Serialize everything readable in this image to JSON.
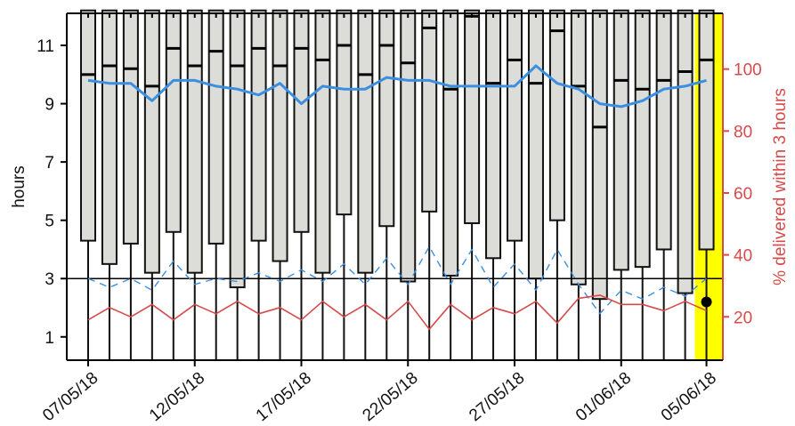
{
  "colors": {
    "box_fill": "#dcdcd8",
    "box_stroke": "#111111",
    "median": "#000000",
    "blue_line": "#3b8fe0",
    "red_line": "#d84a4a",
    "highlight": "#ffff00",
    "right_axis": "#d84a4a"
  },
  "chart_data": {
    "type": "boxplot",
    "ylabel": "hours",
    "y2label": "% delivered within 3 hours",
    "ylim": [
      0.2,
      12.1
    ],
    "y2lim": [
      6,
      118
    ],
    "yticks": [
      1,
      3,
      5,
      7,
      9,
      11
    ],
    "y2ticks": [
      20,
      40,
      60,
      80,
      100
    ],
    "x_tick_labels": [
      "07/05/18",
      "12/05/18",
      "17/05/18",
      "22/05/18",
      "27/05/18",
      "01/06/18",
      "05/06/18"
    ],
    "x_tick_indices": [
      0,
      5,
      10,
      15,
      20,
      25,
      29
    ],
    "reference_line_hours": 3,
    "highlighted_index": 29,
    "boxes": [
      {
        "q1": 4.3,
        "median": 10.0,
        "q3": 12.2,
        "whisker_low": 0.2
      },
      {
        "q1": 3.5,
        "median": 10.3,
        "q3": 12.2,
        "whisker_low": 0.2
      },
      {
        "q1": 4.2,
        "median": 10.2,
        "q3": 12.2,
        "whisker_low": 0.2
      },
      {
        "q1": 3.2,
        "median": 9.6,
        "q3": 12.2,
        "whisker_low": 0.2
      },
      {
        "q1": 4.6,
        "median": 10.9,
        "q3": 12.2,
        "whisker_low": 0.2
      },
      {
        "q1": 3.2,
        "median": 10.3,
        "q3": 12.2,
        "whisker_low": 0.2
      },
      {
        "q1": 4.2,
        "median": 10.8,
        "q3": 12.2,
        "whisker_low": 0.2
      },
      {
        "q1": 2.7,
        "median": 10.3,
        "q3": 12.2,
        "whisker_low": 0.2
      },
      {
        "q1": 4.3,
        "median": 10.9,
        "q3": 12.2,
        "whisker_low": 0.2
      },
      {
        "q1": 3.6,
        "median": 10.3,
        "q3": 12.2,
        "whisker_low": 0.2
      },
      {
        "q1": 4.6,
        "median": 10.9,
        "q3": 12.2,
        "whisker_low": 0.2
      },
      {
        "q1": 3.2,
        "median": 10.5,
        "q3": 12.2,
        "whisker_low": 0.2
      },
      {
        "q1": 5.2,
        "median": 11.0,
        "q3": 12.2,
        "whisker_low": 0.2
      },
      {
        "q1": 3.2,
        "median": 10.0,
        "q3": 12.2,
        "whisker_low": 0.2
      },
      {
        "q1": 4.8,
        "median": 11.0,
        "q3": 12.2,
        "whisker_low": 0.2
      },
      {
        "q1": 2.9,
        "median": 10.4,
        "q3": 12.2,
        "whisker_low": 0.2
      },
      {
        "q1": 5.3,
        "median": 11.6,
        "q3": 12.2,
        "whisker_low": 0.2
      },
      {
        "q1": 3.1,
        "median": 9.5,
        "q3": 12.2,
        "whisker_low": 0.2
      },
      {
        "q1": 4.9,
        "median": 12.0,
        "q3": 12.2,
        "whisker_low": 0.2
      },
      {
        "q1": 3.7,
        "median": 9.7,
        "q3": 12.2,
        "whisker_low": 0.2
      },
      {
        "q1": 4.3,
        "median": 10.5,
        "q3": 12.2,
        "whisker_low": 0.2
      },
      {
        "q1": 3.0,
        "median": 9.7,
        "q3": 12.2,
        "whisker_low": 0.2
      },
      {
        "q1": 5.0,
        "median": 11.5,
        "q3": 12.2,
        "whisker_low": 0.2
      },
      {
        "q1": 2.8,
        "median": 9.6,
        "q3": 12.2,
        "whisker_low": 0.2
      },
      {
        "q1": 2.3,
        "median": 8.2,
        "q3": 12.2,
        "whisker_low": 0.2
      },
      {
        "q1": 3.3,
        "median": 9.8,
        "q3": 12.2,
        "whisker_low": 0.2
      },
      {
        "q1": 3.4,
        "median": 9.5,
        "q3": 12.2,
        "whisker_low": 0.2
      },
      {
        "q1": 4.0,
        "median": 9.8,
        "q3": 12.2,
        "whisker_low": 0.2
      },
      {
        "q1": 2.5,
        "median": 10.1,
        "q3": 12.2,
        "whisker_low": 0.2
      },
      {
        "q1": 4.0,
        "median": 10.5,
        "q3": 12.2,
        "whisker_low": 0.2
      }
    ],
    "series": [
      {
        "axis": "left",
        "style": "solid",
        "values": [
          9.8,
          9.7,
          9.7,
          9.1,
          9.8,
          9.8,
          9.6,
          9.5,
          9.3,
          9.7,
          9.0,
          9.6,
          9.5,
          9.5,
          9.9,
          9.8,
          9.8,
          9.6,
          9.6,
          9.6,
          9.6,
          10.3,
          9.7,
          9.5,
          9.0,
          8.9,
          9.1,
          9.5,
          9.6,
          9.8
        ]
      },
      {
        "axis": "left",
        "style": "dashed",
        "values": [
          3.0,
          2.7,
          3.0,
          2.6,
          3.6,
          2.8,
          3.0,
          2.9,
          3.2,
          2.9,
          3.3,
          2.9,
          3.5,
          2.8,
          3.7,
          2.8,
          4.1,
          2.8,
          4.0,
          2.7,
          3.5,
          2.6,
          4.0,
          2.8,
          1.8,
          2.6,
          2.3,
          2.7,
          2.4,
          3.0
        ]
      },
      {
        "axis": "right",
        "style": "solid",
        "values": [
          19,
          23,
          20,
          24,
          19,
          24,
          21,
          25,
          21,
          23,
          19,
          25,
          20,
          24,
          19,
          25,
          16,
          24,
          19,
          23,
          21,
          25,
          18,
          26,
          27,
          24,
          24,
          22,
          25,
          22
        ]
      }
    ],
    "highlight_point": {
      "index": 29,
      "hours": 2.2
    },
    "grid": false
  }
}
